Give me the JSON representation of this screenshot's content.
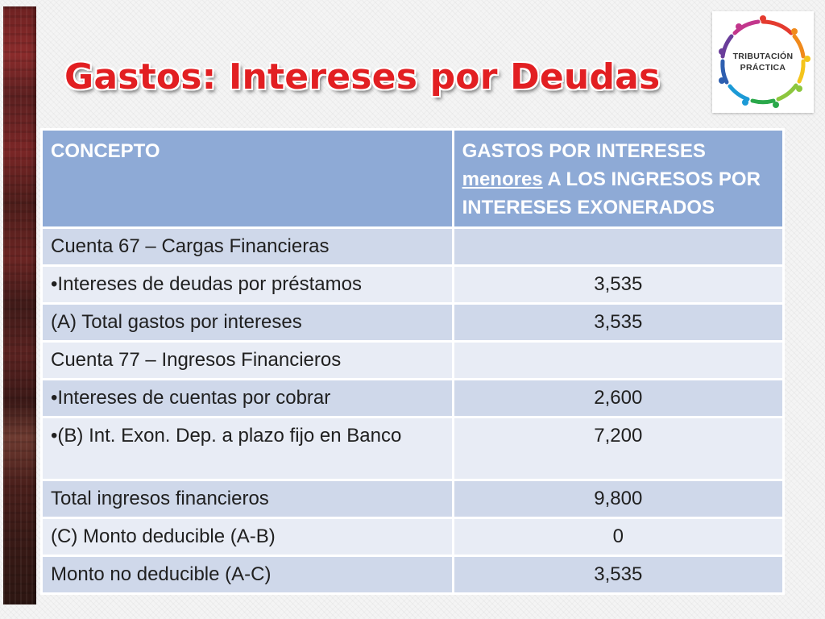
{
  "slide": {
    "title": "Gastos: Intereses por Deudas"
  },
  "logo": {
    "line1": "TRIBUTACIÓN",
    "line2": "PRÁCTICA"
  },
  "table": {
    "headers": {
      "concept": "CONCEPTO",
      "value_part1": "GASTOS POR INTERESES ",
      "value_underlined": "menores",
      "value_part2": " A LOS INGRESOS POR INTERESES EXONERADOS"
    },
    "rows": [
      {
        "concept": "Cuenta 67 – Cargas Financieras",
        "value": ""
      },
      {
        "concept": "•Intereses de deudas por préstamos",
        "value": "3,535"
      },
      {
        "concept": "(A) Total gastos por intereses",
        "value": "3,535"
      },
      {
        "concept": "Cuenta 77 – Ingresos Financieros",
        "value": ""
      },
      {
        "concept": "•Intereses de cuentas por cobrar",
        "value": "2,600"
      },
      {
        "concept": "•(B) Int. Exon. Dep. a plazo fijo en Banco",
        "value": "7,200"
      },
      {
        "concept": "Total ingresos financieros",
        "value": "9,800"
      },
      {
        "concept": "(C) Monto deducible (A-B)",
        "value": "0"
      },
      {
        "concept": "Monto no deducible (A-C)",
        "value": "3,535"
      }
    ]
  },
  "colors": {
    "title": "#e21f22",
    "header_bg": "#8eaad6",
    "row_odd_bg": "#cfd8ea",
    "row_even_bg": "#e8ecf5",
    "side_strip": "#6e2222"
  },
  "icons": {
    "logo": "people-circle-logo-icon"
  }
}
